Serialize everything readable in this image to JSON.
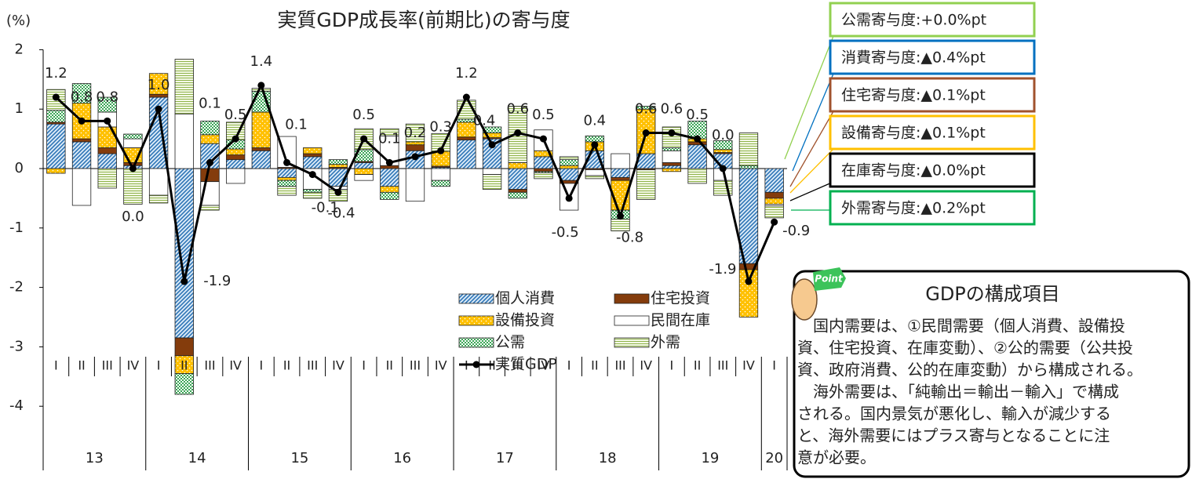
{
  "chart_data": {
    "type": "bar",
    "title": "実質GDP成長率(前期比)の寄与度",
    "y_label": "(%)",
    "categories": [
      "I",
      "II",
      "III",
      "IV",
      "I",
      "II",
      "III",
      "IV",
      "I",
      "II",
      "III",
      "IV",
      "I",
      "II",
      "III",
      "IV",
      "I",
      "II",
      "III",
      "IV",
      "I",
      "II",
      "III",
      "IV",
      "I",
      "II",
      "III",
      "IV",
      "I"
    ],
    "years": [
      "13",
      "14",
      "15",
      "16",
      "17",
      "18",
      "19",
      "20"
    ],
    "ylim": [
      -4,
      2
    ],
    "yticks": [
      -4,
      -3,
      -2,
      -1,
      0,
      1,
      2
    ],
    "series": [
      {
        "name": "個人消費",
        "color": "#2e75b6",
        "values": [
          0.75,
          0.45,
          0.25,
          0.05,
          1.2,
          -2.85,
          0.42,
          0.15,
          0.3,
          -0.15,
          0.2,
          -0.3,
          0.1,
          -0.3,
          0.3,
          0.02,
          0.48,
          0.5,
          -0.35,
          0.2,
          -0.2,
          0.3,
          -0.15,
          0.25,
          0.05,
          0.4,
          0.25,
          -1.6,
          -0.4
        ]
      },
      {
        "name": "住宅投資",
        "color": "#843c0c",
        "values": [
          0.03,
          0.05,
          0.1,
          0.05,
          0.05,
          -0.3,
          -0.22,
          0.08,
          0.05,
          0.02,
          0.05,
          0.02,
          0.02,
          0.05,
          0.1,
          0.02,
          0.05,
          0.02,
          -0.05,
          -0.05,
          -0.05,
          -0.02,
          -0.05,
          -0.02,
          0.05,
          0.05,
          0.02,
          -0.1,
          -0.1
        ]
      },
      {
        "name": "設備投資",
        "color": "#ffc000",
        "values": [
          -0.08,
          0.6,
          0.35,
          0.25,
          0.35,
          -0.3,
          0.15,
          0.1,
          0.6,
          -0.05,
          0.1,
          0.05,
          -0.1,
          -0.1,
          0.05,
          0.25,
          0.25,
          0.08,
          0.1,
          0.1,
          0.05,
          0.15,
          -0.5,
          0.75,
          -0.05,
          0.05,
          0.05,
          -0.8,
          -0.1
        ]
      },
      {
        "name": "民間在庫",
        "color": "#ffffff",
        "values": [
          0,
          -0.62,
          0.25,
          0.15,
          -0.45,
          0.92,
          -0.4,
          -0.25,
          0,
          0.52,
          -0.35,
          -0.05,
          -0.1,
          0.5,
          -0.55,
          -0.2,
          0,
          -0.1,
          0,
          0.35,
          -0.45,
          -0.1,
          0.25,
          0,
          0.2,
          0,
          -0.2,
          0,
          -0.03
        ]
      },
      {
        "name": "公需",
        "color": "#3aa655",
        "values": [
          0.2,
          0.33,
          0.25,
          0.08,
          0,
          -0.35,
          0.23,
          0.15,
          0.35,
          -0.1,
          -0.05,
          0.08,
          0.2,
          -0.12,
          0,
          -0.1,
          0.05,
          0.1,
          -0.1,
          -0.02,
          0.1,
          0.1,
          -0.15,
          0.05,
          0.05,
          0.3,
          0.15,
          0.05,
          0
        ]
      },
      {
        "name": "外需",
        "color": "#8fb34a",
        "values": [
          0.35,
          0,
          -0.33,
          -0.6,
          -0.13,
          0.92,
          -0.08,
          0.3,
          0.05,
          -0.15,
          -0.1,
          -0.2,
          0.35,
          0.12,
          0.3,
          0.3,
          0.32,
          -0.25,
          0.95,
          -0.1,
          0.05,
          -0.05,
          -0.2,
          -0.5,
          0.35,
          -0.25,
          -0.25,
          0.55,
          -0.2
        ]
      },
      {
        "name": "実質GDP",
        "type": "line",
        "color": "#000000",
        "values": [
          1.2,
          0.8,
          0.8,
          0.0,
          1.0,
          -1.9,
          0.1,
          0.5,
          1.4,
          0.1,
          -0.1,
          -0.4,
          0.5,
          0.1,
          0.2,
          0.3,
          1.2,
          0.4,
          0.6,
          0.5,
          -0.5,
          0.4,
          -0.8,
          0.6,
          0.6,
          0.5,
          0.0,
          -1.9,
          -0.9
        ],
        "value_labels": [
          "1.2",
          "0.8",
          "0.8",
          "0.0",
          "1.0",
          "-1.9",
          "0.1",
          "0.5",
          "1.4",
          "0.1",
          "-0.1",
          "-0.4",
          "0.5",
          "0.1",
          "0.2",
          "0.3",
          "1.2",
          "0.4",
          "0.6",
          "0.5",
          "-0.5",
          "0.4",
          "-0.8",
          "0.6",
          "0.6",
          "0.5",
          "0.0",
          "-1.9",
          "-0.9"
        ]
      }
    ],
    "callouts": [
      {
        "text": "公需寄与度:+0.0%pt",
        "color": "#92d050"
      },
      {
        "text": "消費寄与度:▲0.4%pt",
        "color": "#0070c0"
      },
      {
        "text": "住宅寄与度:▲0.1%pt",
        "color": "#a0522d"
      },
      {
        "text": "設備寄与度:▲0.1%pt",
        "color": "#ffc000"
      },
      {
        "text": "在庫寄与度:▲0.0%pt",
        "color": "#000000"
      },
      {
        "text": "外需寄与度:▲0.2%pt",
        "color": "#00b050"
      }
    ]
  },
  "point_box": {
    "badge": "Point",
    "title": "GDPの構成項目",
    "lines": [
      "　国内需要は、①民間需要（個人消費、設備投",
      "資、住宅投資、在庫変動）、②公的需要（公共投",
      "資、政府消費、公的在庫変動）から構成される。",
      "　海外需要は、「純輸出＝輸出－輸入」で構成",
      "される。国内景気が悪化し、輸入が減少する",
      "と、海外需要にはプラス寄与となることに注",
      "意が必要。"
    ]
  }
}
